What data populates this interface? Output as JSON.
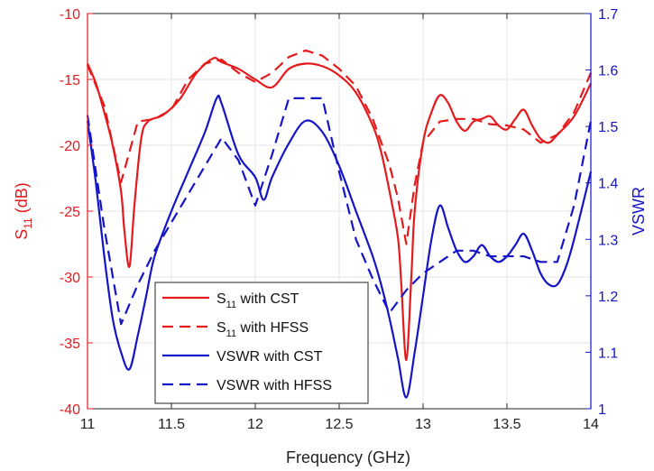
{
  "chart_data": {
    "type": "line",
    "title": "",
    "xlabel": "Frequency (GHz)",
    "ylabel_left": {
      "main": "S",
      "sub": "11",
      "rest": " (dB)"
    },
    "ylabel_right": "VSWR",
    "xlim": [
      11,
      14
    ],
    "ylim_left": [
      -40,
      -10
    ],
    "ylim_right": [
      1,
      1.7
    ],
    "xticks": [
      "11",
      "11.5",
      "12",
      "12.5",
      "13",
      "13.5",
      "14"
    ],
    "yticks_left": [
      "-40",
      "-35",
      "-30",
      "-25",
      "-20",
      "-15",
      "-10"
    ],
    "yticks_right": [
      "1",
      "1.1",
      "1.2",
      "1.3",
      "1.4",
      "1.5",
      "1.6",
      "1.7"
    ],
    "grid": true,
    "legend_position": "bottom-left",
    "colors": {
      "left_axis": "#e41a1c",
      "right_axis": "#1515c8"
    },
    "series": [
      {
        "name": "S11 with CST",
        "legend_main": "S",
        "legend_sub": "11",
        "legend_rest": " with CST",
        "axis": "left",
        "color": "#e41a1c",
        "dash": "solid",
        "x": [
          11.0,
          11.05,
          11.1,
          11.15,
          11.2,
          11.22,
          11.25,
          11.28,
          11.32,
          11.36,
          11.45,
          11.55,
          11.65,
          11.75,
          11.8,
          11.9,
          12.0,
          12.1,
          12.2,
          12.3,
          12.4,
          12.5,
          12.6,
          12.7,
          12.75,
          12.8,
          12.85,
          12.87,
          12.9,
          12.93,
          12.95,
          13.0,
          13.05,
          13.1,
          13.15,
          13.2,
          13.25,
          13.3,
          13.35,
          13.4,
          13.45,
          13.5,
          13.55,
          13.6,
          13.65,
          13.7,
          13.75,
          13.8,
          13.9,
          14.0
        ],
        "y": [
          -13.8,
          -15.3,
          -17.5,
          -20.0,
          -23.5,
          -26.5,
          -29.2,
          -24.5,
          -19.5,
          -18.2,
          -17.7,
          -16.5,
          -14.5,
          -13.4,
          -13.7,
          -14.2,
          -15.0,
          -15.6,
          -14.2,
          -13.8,
          -14.0,
          -14.7,
          -16.0,
          -18.5,
          -20.5,
          -23.5,
          -27.0,
          -30.5,
          -36.3,
          -30.0,
          -25.0,
          -19.8,
          -17.5,
          -16.2,
          -16.8,
          -18.2,
          -18.9,
          -18.2,
          -18.0,
          -17.8,
          -18.5,
          -18.8,
          -18.0,
          -17.3,
          -18.5,
          -19.5,
          -19.8,
          -19.2,
          -17.8,
          -15.3
        ]
      },
      {
        "name": "S11 with HFSS",
        "legend_main": "S",
        "legend_sub": "11",
        "legend_rest": " with HFSS",
        "axis": "left",
        "color": "#e41a1c",
        "dash": "dashed",
        "x": [
          11.0,
          11.1,
          11.2,
          11.3,
          11.4,
          11.5,
          11.6,
          11.7,
          11.8,
          11.9,
          12.0,
          12.1,
          12.2,
          12.3,
          12.4,
          12.5,
          12.6,
          12.7,
          12.8,
          12.85,
          12.9,
          12.95,
          13.0,
          13.1,
          13.2,
          13.3,
          13.4,
          13.5,
          13.6,
          13.7,
          13.8,
          13.9,
          14.0
        ],
        "y": [
          -13.9,
          -17.0,
          -22.8,
          -18.2,
          -18.0,
          -17.3,
          -15.0,
          -13.8,
          -13.5,
          -14.5,
          -15.2,
          -14.5,
          -13.3,
          -12.8,
          -13.2,
          -14.2,
          -15.5,
          -18.0,
          -21.5,
          -24.0,
          -27.5,
          -23.0,
          -19.8,
          -18.2,
          -18.0,
          -18.0,
          -18.4,
          -18.5,
          -18.8,
          -19.8,
          -19.2,
          -17.5,
          -14.5
        ]
      },
      {
        "name": "VSWR with CST",
        "legend_main": "VSWR with CST",
        "axis": "right",
        "color": "#1515c8",
        "dash": "solid",
        "x": [
          11.0,
          11.05,
          11.1,
          11.15,
          11.2,
          11.25,
          11.3,
          11.35,
          11.4,
          11.5,
          11.6,
          11.7,
          11.77,
          11.8,
          11.9,
          12.0,
          12.05,
          12.1,
          12.2,
          12.3,
          12.4,
          12.5,
          12.6,
          12.7,
          12.75,
          12.8,
          12.85,
          12.9,
          12.95,
          13.0,
          13.05,
          13.1,
          13.15,
          13.2,
          13.25,
          13.3,
          13.35,
          13.4,
          13.45,
          13.5,
          13.55,
          13.6,
          13.65,
          13.7,
          13.75,
          13.8,
          13.85,
          13.9,
          14.0
        ],
        "y": [
          1.51,
          1.4,
          1.27,
          1.16,
          1.1,
          1.07,
          1.13,
          1.2,
          1.27,
          1.35,
          1.42,
          1.49,
          1.55,
          1.54,
          1.45,
          1.41,
          1.37,
          1.41,
          1.47,
          1.51,
          1.49,
          1.43,
          1.35,
          1.27,
          1.22,
          1.16,
          1.09,
          1.02,
          1.1,
          1.2,
          1.3,
          1.36,
          1.32,
          1.28,
          1.26,
          1.27,
          1.29,
          1.27,
          1.26,
          1.27,
          1.29,
          1.31,
          1.28,
          1.24,
          1.22,
          1.22,
          1.25,
          1.3,
          1.42
        ]
      },
      {
        "name": "VSWR with HFSS",
        "legend_main": "VSWR with HFSS",
        "axis": "right",
        "color": "#1515c8",
        "dash": "dashed",
        "x": [
          11.0,
          11.1,
          11.2,
          11.3,
          11.4,
          11.5,
          11.6,
          11.7,
          11.8,
          11.9,
          12.0,
          12.1,
          12.2,
          12.3,
          12.4,
          12.5,
          12.6,
          12.7,
          12.8,
          12.9,
          13.0,
          13.1,
          13.2,
          13.3,
          13.4,
          13.5,
          13.6,
          13.7,
          13.8,
          13.9,
          14.0
        ],
        "y": [
          1.52,
          1.32,
          1.15,
          1.22,
          1.28,
          1.33,
          1.38,
          1.43,
          1.48,
          1.44,
          1.36,
          1.45,
          1.55,
          1.55,
          1.55,
          1.42,
          1.3,
          1.23,
          1.17,
          1.21,
          1.24,
          1.26,
          1.28,
          1.28,
          1.27,
          1.27,
          1.27,
          1.26,
          1.26,
          1.36,
          1.51
        ]
      }
    ]
  }
}
